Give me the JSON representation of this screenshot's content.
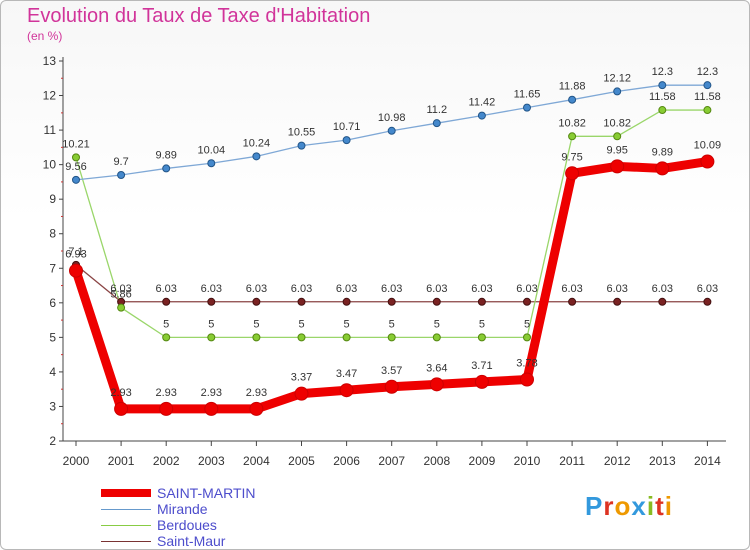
{
  "title": "Evolution du Taux de Taxe d'Habitation",
  "subtitle": "(en %)",
  "chart_data": {
    "type": "line",
    "title": "Evolution du Taux de Taxe d'Habitation",
    "ylabel": "(en %)",
    "xlabel": "",
    "x": [
      "2000",
      "2001",
      "2002",
      "2003",
      "2004",
      "2005",
      "2006",
      "2007",
      "2008",
      "2009",
      "2010",
      "2011",
      "2012",
      "2013",
      "2014"
    ],
    "ylim": [
      2,
      13
    ],
    "yticks": [
      "2",
      "3",
      "4",
      "5",
      "6",
      "7",
      "8",
      "9",
      "10",
      "11",
      "12",
      "13"
    ],
    "grid": false,
    "legend_position": "bottom-left",
    "series": [
      {
        "name": "SAINT-MARTIN",
        "color": "#ee0000",
        "values": [
          6.93,
          2.93,
          2.93,
          2.93,
          2.93,
          3.37,
          3.47,
          3.57,
          3.64,
          3.71,
          3.78,
          9.75,
          9.95,
          9.89,
          10.09
        ],
        "labels": [
          "6.93",
          "2.93",
          "2.93",
          "2.93",
          "2.93",
          "3.37",
          "3.47",
          "3.57",
          "3.64",
          "3.71",
          "3.78",
          "9.75",
          "9.95",
          "9.89",
          "10.09"
        ]
      },
      {
        "name": "Mirande",
        "color": "#6699cc",
        "values": [
          9.56,
          9.7,
          9.89,
          10.04,
          10.24,
          10.55,
          10.71,
          10.98,
          11.2,
          11.42,
          11.65,
          11.88,
          12.12,
          12.3,
          12.3
        ],
        "labels": [
          "9.56",
          "9.7",
          "9.89",
          "10.04",
          "10.24",
          "10.55",
          "10.71",
          "10.98",
          "11.2",
          "11.42",
          "11.65",
          "11.88",
          "12.12",
          "12.3",
          "12.3"
        ]
      },
      {
        "name": "Berdoues",
        "color": "#88cc44",
        "values": [
          10.21,
          5.86,
          5,
          5,
          5,
          5,
          5,
          5,
          5,
          5,
          5,
          10.82,
          10.82,
          11.58,
          11.58
        ],
        "labels": [
          "10.21",
          "5.86",
          "5",
          "5",
          "5",
          "5",
          "5",
          "5",
          "5",
          "5",
          "5",
          "10.82",
          "10.82",
          "11.58",
          "11.58"
        ]
      },
      {
        "name": "Saint-Maur",
        "color": "#7a3333",
        "values": [
          7.1,
          6.03,
          6.03,
          6.03,
          6.03,
          6.03,
          6.03,
          6.03,
          6.03,
          6.03,
          6.03,
          6.03,
          6.03,
          6.03,
          6.03
        ],
        "labels": [
          "7.1",
          "6.03",
          "6.03",
          "6.03",
          "6.03",
          "6.03",
          "6.03",
          "6.03",
          "6.03",
          "6.03",
          "6.03",
          "6.03",
          "6.03",
          "6.03",
          "6.03"
        ]
      }
    ]
  },
  "logo": {
    "text": "Proxiti",
    "colors": [
      "#3399dd",
      "#dd3322",
      "#ee9900",
      "#3399dd",
      "#88bb22",
      "#dd3322",
      "#ee9900"
    ]
  }
}
